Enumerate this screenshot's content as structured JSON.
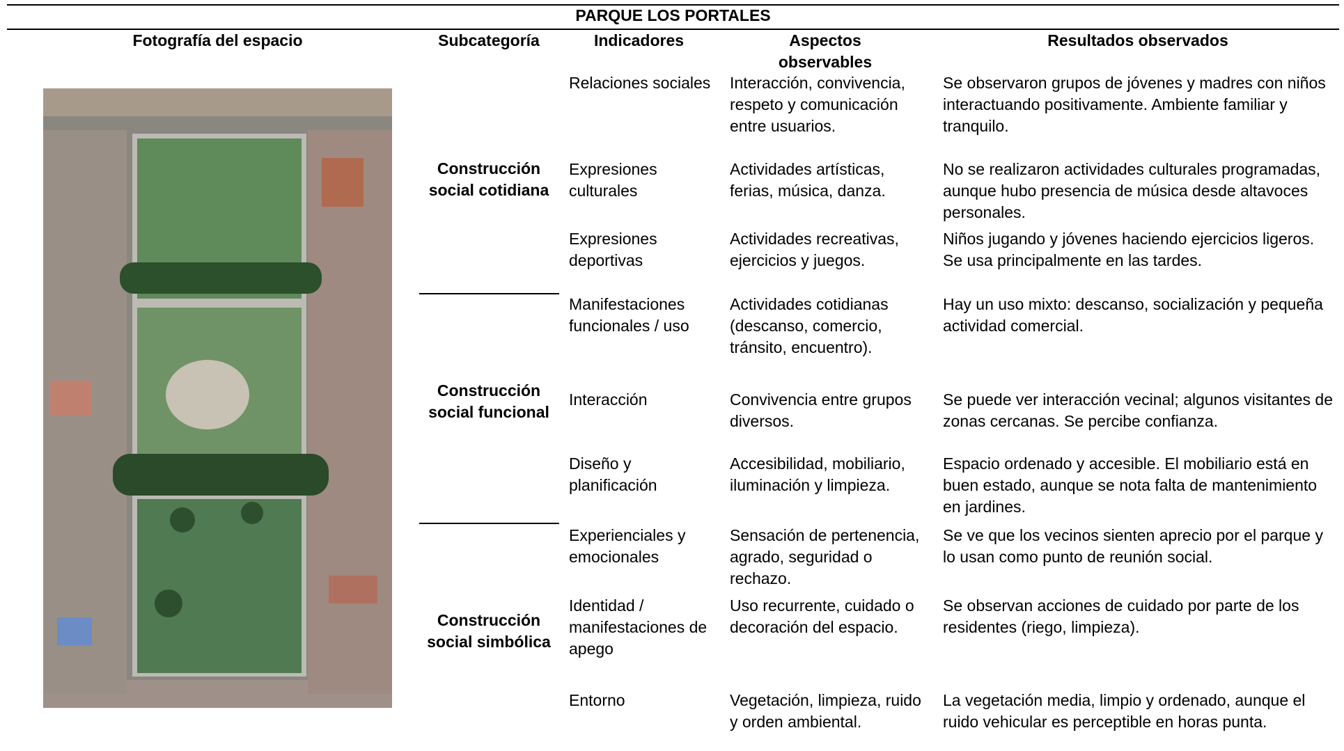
{
  "title": "PARQUE LOS PORTALES",
  "headers": [
    "Fotografía del espacio",
    "Subcategoría",
    "Indicadores",
    "Aspectos observables",
    "Resultados observados"
  ],
  "groups": [
    {
      "subcategory": "Construcción social cotidiana",
      "rows": [
        {
          "indicator": "Relaciones sociales",
          "aspects": "Interacción, convivencia, respeto y comunicación entre usuarios.",
          "results": "Se observaron grupos de jóvenes y madres con niños interactuando positivamente. Ambiente familiar y tranquilo."
        },
        {
          "indicator": "Expresiones culturales",
          "aspects": "Actividades artísticas, ferias, música, danza.",
          "results": "No se realizaron actividades culturales programadas, aunque hubo presencia de música desde altavoces personales."
        },
        {
          "indicator": "Expresiones deportivas",
          "aspects": "Actividades recreativas, ejercicios y juegos.",
          "results": "Niños jugando y jóvenes haciendo ejercicios ligeros. Se usa principalmente en las tardes."
        }
      ]
    },
    {
      "subcategory": "Construcción social funcional",
      "rows": [
        {
          "indicator": "Manifestaciones funcionales / uso",
          "aspects": "Actividades cotidianas (descanso, comercio, tránsito, encuentro).",
          "results": "Hay un uso mixto: descanso, socialización y pequeña actividad comercial."
        },
        {
          "indicator": "Interacción",
          "aspects": "Convivencia entre grupos diversos.",
          "results": "Se puede ver interacción vecinal; algunos visitantes de zonas cercanas. Se percibe confianza."
        },
        {
          "indicator": "Diseño y planificación",
          "aspects": "Accesibilidad, mobiliario, iluminación y limpieza.",
          "results": "Espacio ordenado y accesible. El mobiliario está en buen estado, aunque se nota falta de mantenimiento en jardines."
        }
      ]
    },
    {
      "subcategory": "Construcción social simbólica",
      "rows": [
        {
          "indicator": "Experienciales y emocionales",
          "aspects": "Sensación de pertenencia, agrado, seguridad o rechazo.",
          "results": "Se ve que los vecinos sienten aprecio por el parque y lo usan como punto de reunión social."
        },
        {
          "indicator": "Identidad / manifestaciones de apego",
          "aspects": "Uso recurrente, cuidado o decoración del espacio.",
          "results": "Se observan acciones de cuidado por parte de los residentes (riego, limpieza)."
        },
        {
          "indicator": "Entorno",
          "aspects": "Vegetación, limpieza, ruido y orden ambiental.",
          "results": "La vegetación media, limpio y ordenado, aunque el ruido vehicular es perceptible en horas punta."
        }
      ]
    }
  ]
}
